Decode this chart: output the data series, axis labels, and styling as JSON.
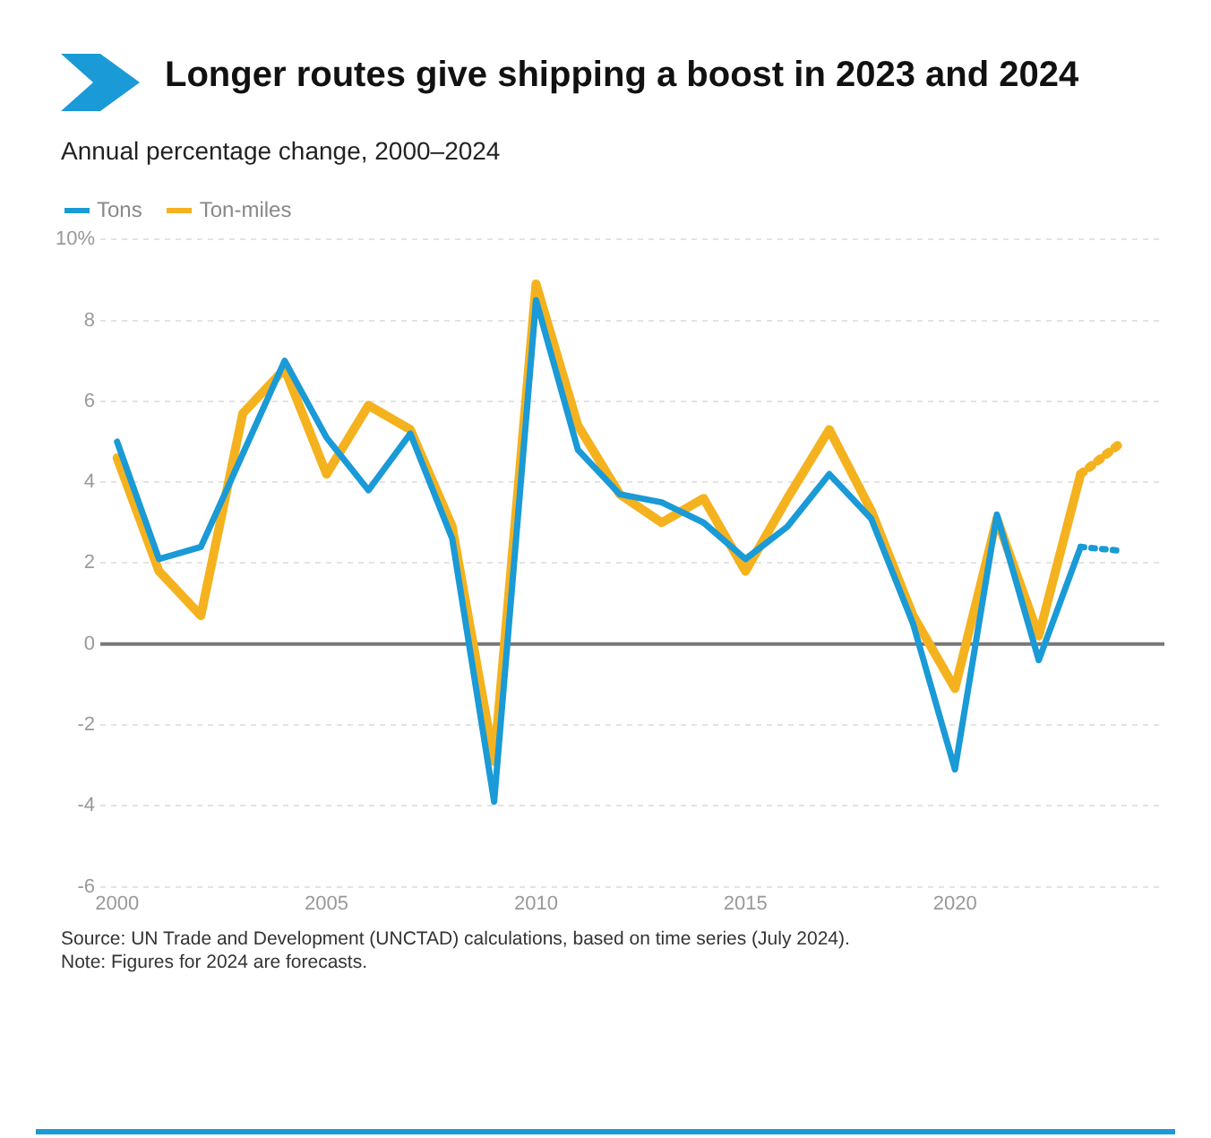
{
  "chart_data": {
    "type": "line",
    "title": "Longer routes give shipping a boost in 2023 and 2024",
    "subtitle": "Annual percentage change, 2000–2024",
    "x": [
      2000,
      2001,
      2002,
      2003,
      2004,
      2005,
      2006,
      2007,
      2008,
      2009,
      2010,
      2011,
      2012,
      2013,
      2014,
      2015,
      2016,
      2017,
      2018,
      2019,
      2020,
      2021,
      2022,
      2023,
      2024
    ],
    "series": [
      {
        "name": "Tons",
        "color": "#1a9ad6",
        "values": [
          5.0,
          2.1,
          2.4,
          4.7,
          7.0,
          5.1,
          3.8,
          5.2,
          2.6,
          -3.9,
          8.5,
          4.8,
          3.7,
          3.5,
          3.0,
          2.1,
          2.9,
          4.2,
          3.1,
          0.5,
          -3.1,
          3.2,
          -0.4,
          2.4,
          null
        ]
      },
      {
        "name": "Ton-miles",
        "color": "#f5b21f",
        "values": [
          4.6,
          1.8,
          0.7,
          5.7,
          6.8,
          4.2,
          5.9,
          5.3,
          2.9,
          -2.9,
          8.9,
          5.4,
          3.7,
          3.0,
          3.6,
          1.8,
          3.6,
          5.3,
          3.3,
          0.7,
          -1.1,
          3.1,
          0.2,
          4.2,
          null
        ]
      },
      {
        "color": "#1a9ad6",
        "line_style": "dotted",
        "values": [
          null,
          null,
          null,
          null,
          null,
          null,
          null,
          null,
          null,
          null,
          null,
          null,
          null,
          null,
          null,
          null,
          null,
          null,
          null,
          null,
          null,
          null,
          null,
          2.4,
          2.3
        ]
      },
      {
        "color": "#f5b21f",
        "line_style": "dotted",
        "values": [
          null,
          null,
          null,
          null,
          null,
          null,
          null,
          null,
          null,
          null,
          null,
          null,
          null,
          null,
          null,
          null,
          null,
          null,
          null,
          null,
          null,
          null,
          null,
          4.2,
          5.0
        ]
      }
    ],
    "xlim": [
      1999.6,
      2025
    ],
    "xticks": [
      2000,
      2005,
      2010,
      2015,
      2020
    ],
    "ylim": [
      -6,
      10
    ],
    "yticks": [
      -6,
      -4,
      -2,
      0,
      2,
      4,
      6,
      8,
      {
        "value": 10,
        "label": "10%"
      }
    ],
    "grid": "y",
    "legend": "top left",
    "line_style": "solid",
    "marker": "none",
    "ref_lines": [
      {
        "axis": "y",
        "value": 0,
        "color": "#777777"
      }
    ],
    "annotations": [
      "Source: UN Trade and Development (UNCTAD) calculations, based on time series (July 2024).",
      "Note: Figures for 2024 are forecasts."
    ]
  }
}
